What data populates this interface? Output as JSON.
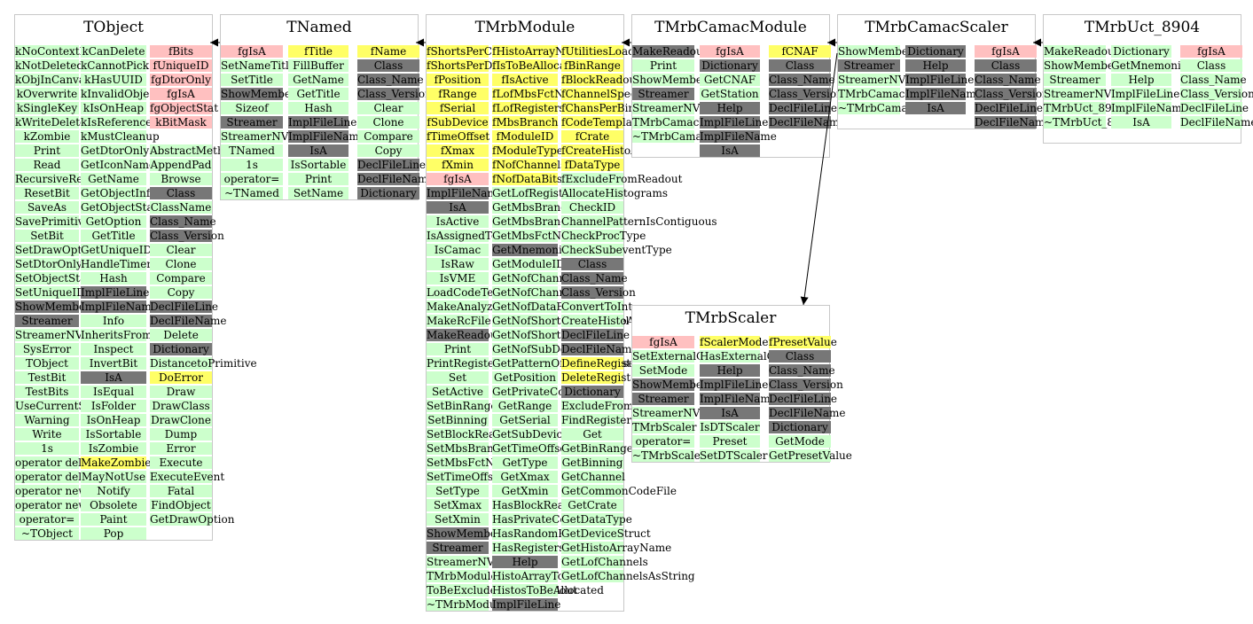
{
  "colors": {
    "method": "#ccffcc",
    "data_member": "#ffff66",
    "isa": "#ffc0c0",
    "base": "#777777",
    "border": "#c8c8c8"
  },
  "classes": [
    {
      "title": "TObject",
      "columns": [
        [
          "g:kNoContextMenu",
          "g:kNotDeleted",
          "g:kObjInCanvas",
          "g:kOverwrite",
          "g:kSingleKey",
          "g:kWriteDelete",
          "g:kZombie",
          "g:Print",
          "g:Read",
          "g:RecursiveRemove",
          "g:ResetBit",
          "g:SaveAs",
          "g:SavePrimitive",
          "g:SetBit",
          "g:SetDrawOption",
          "g:SetDtorOnly",
          "g:SetObjectStat",
          "g:SetUniqueID",
          "d:ShowMembers",
          "d:Streamer",
          "g:StreamerNVirtual",
          "g:SysError",
          "g:TObject",
          "g:TestBit",
          "g:TestBits",
          "g:UseCurrentStyle",
          "g:Warning",
          "g:Write",
          "g:1s",
          "g:operator delete",
          "g:operator delete[]",
          "g:operator new",
          "g:operator new[]",
          "g:operator=",
          "g:~TObject"
        ],
        [
          "g:kCanDelete",
          "g:kCannotPick",
          "g:kHasUUID",
          "g:kInvalidObject",
          "g:kIsOnHeap",
          "g:kIsReferenced",
          "g:kMustCleanup",
          "g:GetDtorOnly",
          "g:GetIconName",
          "g:GetName",
          "g:GetObjectInfo",
          "g:GetObjectStat",
          "g:GetOption",
          "g:GetTitle",
          "g:GetUniqueID",
          "g:HandleTimer",
          "g:Hash",
          "d:ImplFileLine",
          "d:ImplFileName",
          "g:Info",
          "g:InheritsFrom",
          "g:Inspect",
          "g:InvertBit",
          "d:IsA",
          "g:IsEqual",
          "g:IsFolder",
          "g:IsOnHeap",
          "g:IsSortable",
          "g:IsZombie",
          "y:MakeZombie",
          "g:MayNotUse",
          "g:Notify",
          "g:Obsolete",
          "g:Paint",
          "g:Pop"
        ],
        [
          "p:fBits",
          "p:fUniqueID",
          "p:fgDtorOnly",
          "p:fgIsA",
          "p:fgObjectStat",
          "p:kBitMask",
          "_",
          "g:AbstractMethod",
          "g:AppendPad",
          "g:Browse",
          "d:Class",
          "g:ClassName",
          "d:Class_Name",
          "d:Class_Version",
          "g:Clear",
          "g:Clone",
          "g:Compare",
          "g:Copy",
          "d:DeclFileLine",
          "d:DeclFileName",
          "g:Delete",
          "d:Dictionary",
          "g:DistancetoPrimitive",
          "y:DoError",
          "g:Draw",
          "g:DrawClass",
          "g:DrawClone",
          "g:Dump",
          "g:Error",
          "g:Execute",
          "g:ExecuteEvent",
          "g:Fatal",
          "g:FindObject",
          "g:GetDrawOption"
        ]
      ]
    },
    {
      "title": "TNamed",
      "columns": [
        [
          "p:fgIsA",
          "g:SetNameTitle",
          "g:SetTitle",
          "d:ShowMembers",
          "g:Sizeof",
          "d:Streamer",
          "g:StreamerNVirtual",
          "g:TNamed",
          "g:1s",
          "g:operator=",
          "g:~TNamed"
        ],
        [
          "y:fTitle",
          "g:FillBuffer",
          "g:GetName",
          "g:GetTitle",
          "g:Hash",
          "d:ImplFileLine",
          "d:ImplFileName",
          "d:IsA",
          "g:IsSortable",
          "g:Print",
          "g:SetName"
        ],
        [
          "y:fName",
          "d:Class",
          "d:Class_Name",
          "d:Class_Version",
          "g:Clear",
          "g:Clone",
          "g:Compare",
          "g:Copy",
          "d:DeclFileLine",
          "d:DeclFileName",
          "d:Dictionary"
        ]
      ]
    },
    {
      "title": "TMrbModule",
      "columns": [
        [
          "y:fShortsPerChannel",
          "y:fShortsPerDatum",
          "y:fPosition",
          "y:fRange",
          "y:fSerial",
          "y:fSubDevice",
          "y:fTimeOffset",
          "y:fXmax",
          "y:fXmin",
          "p:fgIsA",
          "d:ImplFileName",
          "d:IsA",
          "g:IsActive",
          "g:IsAssignedToBranch",
          "g:IsCamac",
          "g:IsRaw",
          "g:IsVME",
          "g:LoadCodeTemplates",
          "g:MakeAnalyzeCode",
          "g:MakeRcFile",
          "d:MakeReadoutCode",
          "g:Print",
          "g:PrintRegister",
          "g:Set",
          "g:SetActive",
          "g:SetBinRange",
          "g:SetBinning",
          "g:SetBlockReadout",
          "g:SetMbsBranch",
          "g:SetMbsFctName",
          "g:SetTimeOffset",
          "g:SetType",
          "g:SetXmax",
          "g:SetXmin",
          "d:ShowMembers",
          "d:Streamer",
          "g:StreamerNVirtual",
          "g:TMrbModule",
          "g:ToBeExcludedFromReadout",
          "g:~TMrbModule"
        ],
        [
          "y:fHistoArrayName",
          "y:fIsToBeAllocated",
          "y:fIsActive",
          "y:fLofMbsFctNames",
          "y:fLofRegisters",
          "y:fMbsBranch",
          "y:fModuleID",
          "y:fModuleType",
          "y:fNofChannels",
          "y:fNofDataBits",
          "g:GetLofRegisters",
          "g:GetMbsBranch",
          "g:GetMbsBranchNo",
          "g:GetMbsFctName",
          "d:GetMnemonic",
          "g:GetModuleID",
          "g:GetNofChannels",
          "g:GetNofChannelsUsed",
          "g:GetNofDataBits",
          "g:GetNofShortsPerChannel",
          "g:GetNofShortsPerDatum",
          "g:GetNofSubDevices",
          "g:GetPatternOfChannelsUsed",
          "g:GetPosition",
          "g:GetPrivateCodeFile",
          "g:GetRange",
          "g:GetSerial",
          "g:GetSubDevice",
          "g:GetTimeOffset",
          "g:GetType",
          "g:GetXmax",
          "g:GetXmin",
          "g:HasBlockReadout",
          "g:HasPrivateCode",
          "g:HasRandomReadout",
          "g:HasRegisters",
          "d:Help",
          "g:HistoArrayToBeCreated",
          "g:HistosToBeAllocated",
          "d:ImplFileLine"
        ],
        [
          "y:fUtilitiesLoaded",
          "y:fBinRange",
          "y:fBlockReadout",
          "y:fChannelSpec",
          "y:fChansPerBin",
          "y:fCodeTemplates",
          "y:fCrate",
          "y:fCreateHistoArray",
          "y:fDataType",
          "g:fExcludeFromReadout",
          "g:AllocateHistograms",
          "g:CheckID",
          "g:ChannelPatternIsContiguous",
          "g:CheckProcType",
          "g:CheckSubeventType",
          "d:Class",
          "d:Class_Name",
          "d:Class_Version",
          "g:ConvertToInt",
          "g:CreateHistoArray",
          "d:DeclFileLine",
          "d:DeclFileName",
          "y:DefineRegisters",
          "y:DeleteRegisters",
          "d:Dictionary",
          "g:ExcludeFromReadout",
          "g:FindRegister",
          "g:Get",
          "g:GetBinRange",
          "g:GetBinning",
          "g:GetChannel",
          "g:GetCommonCodeFile",
          "g:GetCrate",
          "g:GetDataType",
          "g:GetDeviceStruct",
          "g:GetHistoArrayName",
          "g:GetLofChannels",
          "g:GetLofChannelsAsString"
        ]
      ]
    },
    {
      "title": "TMrbCamacModule",
      "columns": [
        [
          "d:MakeReadoutCode",
          "g:Print",
          "g:ShowMembers",
          "d:Streamer",
          "g:StreamerNVirtual",
          "g:TMrbCamacModule",
          "g:~TMrbCamacModule"
        ],
        [
          "p:fgIsA",
          "d:Dictionary",
          "g:GetCNAF",
          "g:GetStation",
          "d:Help",
          "d:ImplFileLine",
          "d:ImplFileName",
          "d:IsA"
        ],
        [
          "y:fCNAF",
          "d:Class",
          "d:Class_Name",
          "d:Class_Version",
          "d:DeclFileLine",
          "d:DeclFileName"
        ]
      ]
    },
    {
      "title": "TMrbCamacScaler",
      "columns": [
        [
          "g:ShowMembers",
          "d:Streamer",
          "g:StreamerNVirtual",
          "g:TMrbCamacScaler",
          "g:~TMrbCamacScaler"
        ],
        [
          "d:Dictionary",
          "d:Help",
          "d:ImplFileLine",
          "d:ImplFileName",
          "d:IsA"
        ],
        [
          "p:fgIsA",
          "d:Class",
          "d:Class_Name",
          "d:Class_Version",
          "d:DeclFileLine",
          "d:DeclFileName"
        ]
      ]
    },
    {
      "title": "TMrbUct_8904",
      "columns": [
        [
          "g:MakeReadoutCode",
          "g:ShowMembers",
          "g:Streamer",
          "g:StreamerNVirtual",
          "g:TMrbUct_8904",
          "g:~TMrbUct_8904"
        ],
        [
          "g:Dictionary",
          "g:GetMnemonic",
          "g:Help",
          "g:ImplFileLine",
          "g:ImplFileName",
          "g:IsA"
        ],
        [
          "p:fgIsA",
          "g:Class",
          "g:Class_Name",
          "g:Class_Version",
          "g:DeclFileLine",
          "g:DeclFileName"
        ]
      ]
    },
    {
      "title": "TMrbScaler",
      "columns": [
        [
          "p:fgIsA",
          "g:SetExternalGate",
          "g:SetMode",
          "d:ShowMembers",
          "d:Streamer",
          "g:StreamerNVirtual",
          "g:TMrbScaler",
          "g:operator=",
          "g:~TMrbScaler"
        ],
        [
          "y:fScalerMode",
          "g:HasExternalGate",
          "d:Help",
          "d:ImplFileLine",
          "d:ImplFileName",
          "d:IsA",
          "g:IsDTScaler",
          "g:Preset",
          "g:SetDTScaler"
        ],
        [
          "y:fPresetValue",
          "d:Class",
          "d:Class_Name",
          "d:Class_Version",
          "d:DeclFileLine",
          "d:DeclFileName",
          "d:Dictionary",
          "g:GetMode",
          "g:GetPresetValue"
        ]
      ]
    }
  ]
}
